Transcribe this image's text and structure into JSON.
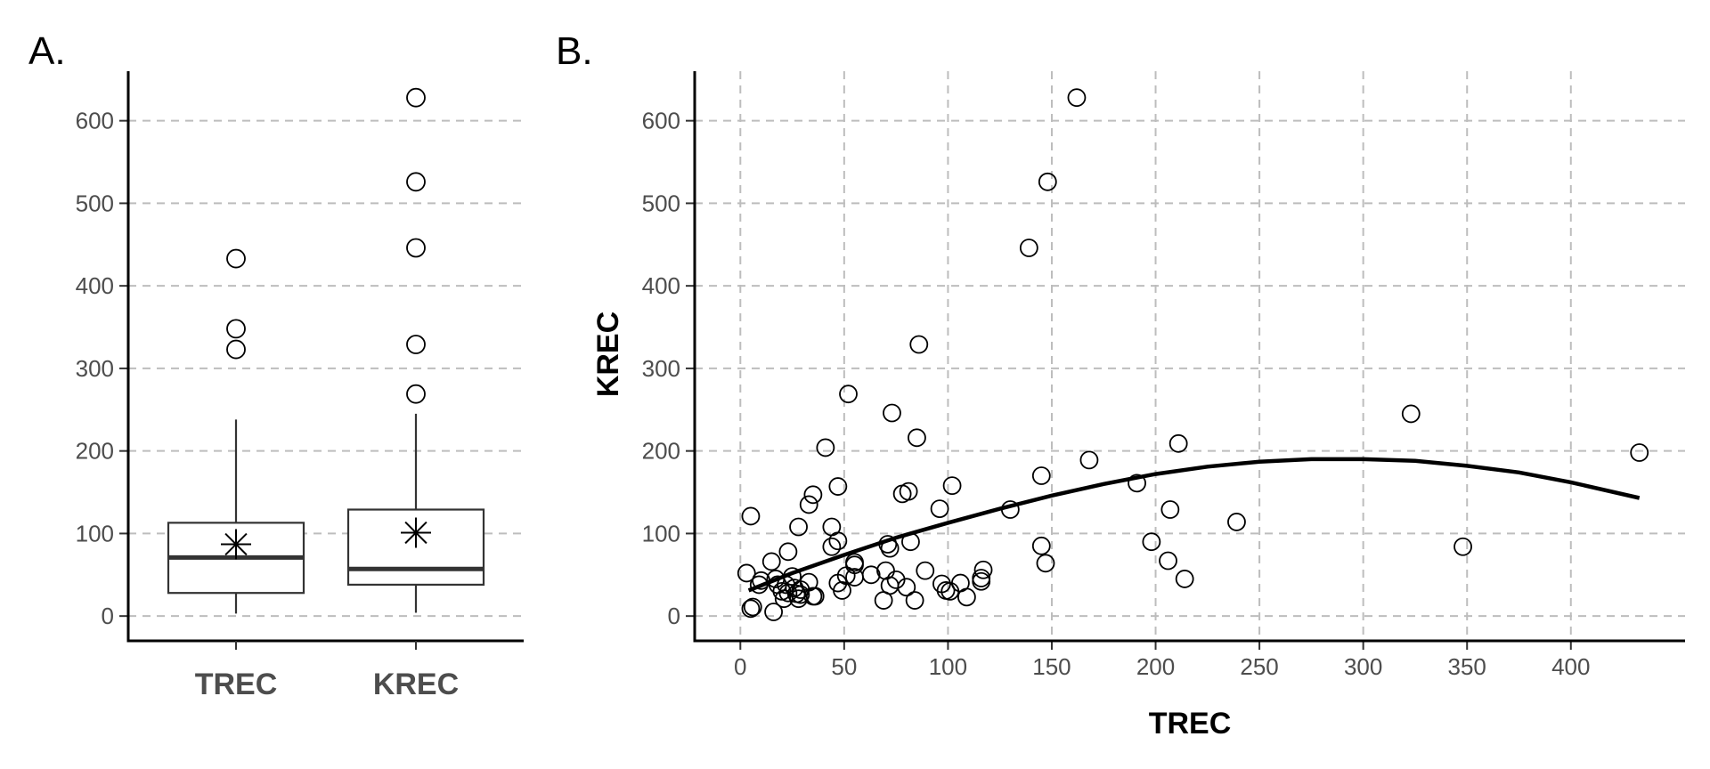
{
  "panels": {
    "a_label": "A.",
    "b_label": "B."
  },
  "chart_data": [
    {
      "type": "box",
      "panel": "A.",
      "categories": [
        "TREC",
        "KREC"
      ],
      "ylim": [
        -30,
        660
      ],
      "yticks": [
        0,
        100,
        200,
        300,
        400,
        500,
        600
      ],
      "grid": "horizontal dashed",
      "boxes": [
        {
          "name": "TREC",
          "whisker_low": 3,
          "q1": 28,
          "median": 71,
          "q3": 113,
          "whisker_high": 238,
          "mean": 87,
          "outliers": [
            323,
            348,
            433
          ]
        },
        {
          "name": "KREC",
          "whisker_low": 4,
          "q1": 38,
          "median": 57,
          "q3": 129,
          "whisker_high": 245,
          "mean": 101,
          "outliers": [
            269,
            329,
            446,
            526,
            628
          ]
        }
      ]
    },
    {
      "type": "scatter",
      "panel": "B.",
      "xlabel": "TREC",
      "ylabel": "KREC",
      "xlim": [
        -22,
        455
      ],
      "ylim": [
        -30,
        660
      ],
      "xticks": [
        0,
        50,
        100,
        150,
        200,
        250,
        300,
        350,
        400
      ],
      "yticks": [
        0,
        100,
        200,
        300,
        400,
        500,
        600
      ],
      "grid": "dashed both",
      "points": [
        [
          3,
          52
        ],
        [
          5,
          9
        ],
        [
          6,
          11
        ],
        [
          5,
          121
        ],
        [
          9,
          38
        ],
        [
          10,
          43
        ],
        [
          15,
          66
        ],
        [
          16,
          5
        ],
        [
          17,
          45
        ],
        [
          18,
          38
        ],
        [
          20,
          30
        ],
        [
          21,
          21
        ],
        [
          22,
          38
        ],
        [
          23,
          28
        ],
        [
          23,
          78
        ],
        [
          25,
          48
        ],
        [
          26,
          34
        ],
        [
          27,
          27
        ],
        [
          28,
          108
        ],
        [
          28,
          21
        ],
        [
          29,
          32
        ],
        [
          29,
          26
        ],
        [
          33,
          41
        ],
        [
          33,
          135
        ],
        [
          35,
          147
        ],
        [
          35,
          24
        ],
        [
          36,
          24
        ],
        [
          41,
          204
        ],
        [
          44,
          84
        ],
        [
          44,
          108
        ],
        [
          47,
          40
        ],
        [
          47,
          91
        ],
        [
          47,
          157
        ],
        [
          49,
          31
        ],
        [
          51,
          49
        ],
        [
          52,
          269
        ],
        [
          55,
          65
        ],
        [
          55,
          47
        ],
        [
          55,
          62
        ],
        [
          63,
          50
        ],
        [
          69,
          19
        ],
        [
          70,
          55
        ],
        [
          71,
          87
        ],
        [
          72,
          82
        ],
        [
          72,
          37
        ],
        [
          73,
          246
        ],
        [
          75,
          44
        ],
        [
          78,
          148
        ],
        [
          80,
          35
        ],
        [
          81,
          151
        ],
        [
          82,
          90
        ],
        [
          84,
          19
        ],
        [
          85,
          216
        ],
        [
          86,
          329
        ],
        [
          89,
          55
        ],
        [
          96,
          130
        ],
        [
          97,
          39
        ],
        [
          99,
          31
        ],
        [
          101,
          30
        ],
        [
          102,
          158
        ],
        [
          106,
          40
        ],
        [
          109,
          23
        ],
        [
          116,
          42
        ],
        [
          116,
          46
        ],
        [
          117,
          56
        ],
        [
          130,
          129
        ],
        [
          139,
          446
        ],
        [
          145,
          170
        ],
        [
          145,
          85
        ],
        [
          147,
          64
        ],
        [
          148,
          526
        ],
        [
          162,
          628
        ],
        [
          168,
          189
        ],
        [
          191,
          161
        ],
        [
          198,
          90
        ],
        [
          206,
          67
        ],
        [
          207,
          129
        ],
        [
          211,
          209
        ],
        [
          214,
          45
        ],
        [
          239,
          114
        ],
        [
          323,
          245
        ],
        [
          348,
          84
        ],
        [
          433,
          198
        ]
      ],
      "fit_line": {
        "type": "quadratic",
        "x": [
          4,
          25,
          50,
          75,
          100,
          125,
          150,
          175,
          200,
          225,
          250,
          275,
          300,
          325,
          350,
          375,
          400,
          433
        ],
        "y": [
          31,
          52,
          74,
          95,
          113,
          130,
          146,
          160,
          172,
          181,
          187,
          190,
          190,
          188,
          182,
          174,
          162,
          143
        ]
      }
    }
  ]
}
